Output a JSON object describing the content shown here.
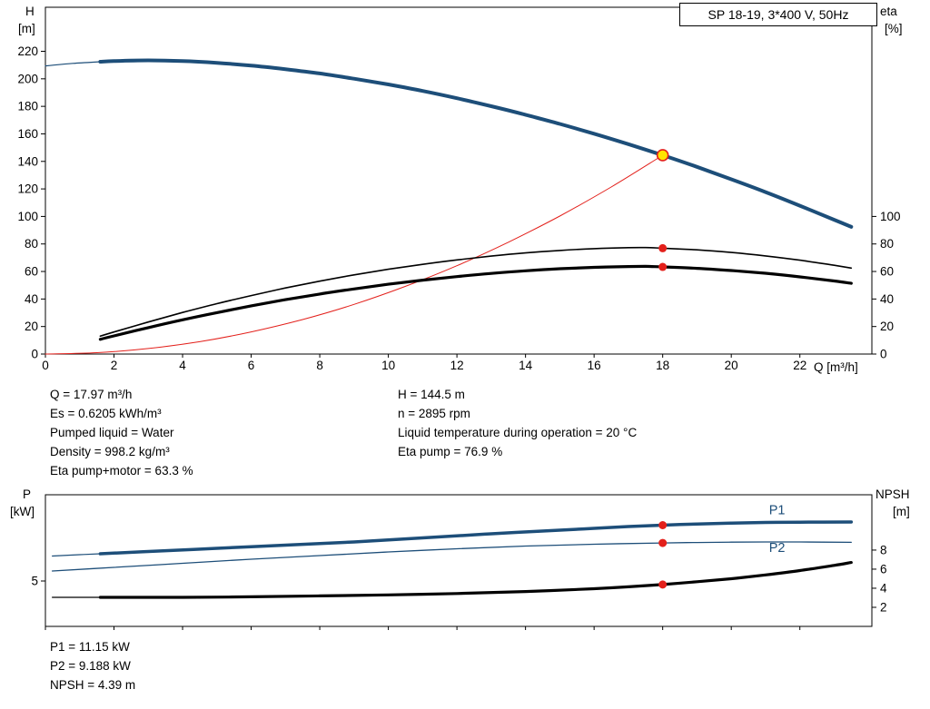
{
  "colors": {
    "curve_blue": "#1d4e79",
    "curve_red": "#e3201b",
    "curve_black": "#000000",
    "duty_fill": "#ffe400",
    "label_blue": "#1d4e79"
  },
  "info_top": {
    "left": [
      "Q = 17.97 m³/h",
      "Es = 0.6205 kWh/m³",
      "Pumped liquid = Water",
      "Density = 998.2 kg/m³",
      "Eta pump+motor = 63.3 %"
    ],
    "right": [
      "H = 144.5 m",
      "n = 2895 rpm",
      "Liquid temperature during operation = 20 °C",
      "Eta pump = 76.9 %"
    ]
  },
  "info_bottom": [
    "P1 = 11.15 kW",
    "P2 = 9.188 kW",
    "NPSH = 4.39 m"
  ],
  "chart_data": [
    {
      "type": "line",
      "title": "SP 18-19, 3*400 V, 50Hz",
      "x_axis": {
        "label": "Q [m³/h]",
        "lim": [
          0,
          24.1
        ],
        "ticks": [
          0,
          2,
          4,
          6,
          8,
          10,
          12,
          14,
          16,
          18,
          20,
          22
        ],
        "show_labels": true
      },
      "left_axis": {
        "name": "H",
        "unit": "[m]",
        "lim": [
          0,
          252
        ],
        "ticks": [
          0,
          20,
          40,
          60,
          80,
          100,
          120,
          140,
          160,
          180,
          200,
          220
        ]
      },
      "right_axis": {
        "name": "eta",
        "unit": "[%]",
        "lim": [
          0,
          252
        ],
        "ticks": [
          0,
          20,
          40,
          60,
          80,
          100
        ]
      },
      "series": [
        {
          "name": "head-curve-lead",
          "axis": "left",
          "color_key": "curve_blue",
          "width": 1.2,
          "points": [
            [
              0,
              209.4
            ],
            [
              0.8,
              211.2
            ],
            [
              1.6,
              212.4
            ]
          ]
        },
        {
          "name": "head-curve",
          "axis": "left",
          "color_key": "curve_blue",
          "width": 4,
          "points": [
            [
              1.6,
              212.4
            ],
            [
              2,
              212.9
            ],
            [
              3,
              213.4
            ],
            [
              4,
              212.9
            ],
            [
              5,
              211.6
            ],
            [
              6,
              209.6
            ],
            [
              7,
              207.0
            ],
            [
              8,
              203.9
            ],
            [
              9,
              200.1
            ],
            [
              10,
              195.9
            ],
            [
              11,
              191.2
            ],
            [
              12,
              185.9
            ],
            [
              13,
              180.1
            ],
            [
              14,
              173.9
            ],
            [
              15,
              167.2
            ],
            [
              16,
              160.1
            ],
            [
              17,
              152.5
            ],
            [
              18,
              144.5
            ],
            [
              19,
              136.0
            ],
            [
              20,
              127.0
            ],
            [
              21,
              117.7
            ],
            [
              22,
              107.8
            ],
            [
              23,
              97.6
            ],
            [
              23.5,
              92.4
            ]
          ]
        },
        {
          "name": "duty-parabola",
          "axis": "left",
          "color_key": "curve_red",
          "width": 1,
          "points": [
            [
              0,
              0
            ],
            [
              1.5,
              1.0
            ],
            [
              3,
              4.0
            ],
            [
              4.5,
              9.0
            ],
            [
              6,
              16.1
            ],
            [
              7.5,
              25.1
            ],
            [
              9,
              36.1
            ],
            [
              10.5,
              49.2
            ],
            [
              12,
              64.2
            ],
            [
              13.5,
              81.3
            ],
            [
              15,
              100.3
            ],
            [
              16.5,
              121.4
            ],
            [
              18,
              144.5
            ]
          ]
        },
        {
          "name": "eta-pump-curve",
          "axis": "right",
          "color_key": "curve_black",
          "width": 1.6,
          "points": [
            [
              1.6,
              13.0
            ],
            [
              2,
              16.0
            ],
            [
              3,
              23.3
            ],
            [
              4,
              30.2
            ],
            [
              5,
              36.6
            ],
            [
              6,
              42.5
            ],
            [
              7,
              48.0
            ],
            [
              8,
              53.0
            ],
            [
              9,
              57.5
            ],
            [
              10,
              61.6
            ],
            [
              11,
              65.2
            ],
            [
              12,
              68.4
            ],
            [
              13,
              71.2
            ],
            [
              14,
              73.5
            ],
            [
              15,
              75.3
            ],
            [
              16,
              76.6
            ],
            [
              17,
              77.3
            ],
            [
              17.5,
              77.4
            ],
            [
              18,
              76.9
            ],
            [
              19,
              75.7
            ],
            [
              20,
              73.8
            ],
            [
              21,
              71.3
            ],
            [
              22,
              68.2
            ],
            [
              23,
              64.5
            ],
            [
              23.5,
              62.5
            ]
          ]
        },
        {
          "name": "eta-pump-motor-curve",
          "axis": "right",
          "color_key": "curve_black",
          "width": 3.2,
          "points": [
            [
              1.6,
              10.7
            ],
            [
              2,
              13.2
            ],
            [
              3,
              19.2
            ],
            [
              4,
              24.9
            ],
            [
              5,
              30.1
            ],
            [
              6,
              35.0
            ],
            [
              7,
              39.5
            ],
            [
              8,
              43.6
            ],
            [
              9,
              47.3
            ],
            [
              10,
              50.7
            ],
            [
              11,
              53.7
            ],
            [
              12,
              56.3
            ],
            [
              13,
              58.6
            ],
            [
              14,
              60.5
            ],
            [
              15,
              62.0
            ],
            [
              16,
              63.0
            ],
            [
              17,
              63.6
            ],
            [
              17.5,
              63.7
            ],
            [
              18,
              63.3
            ],
            [
              19,
              62.3
            ],
            [
              20,
              60.7
            ],
            [
              21,
              58.7
            ],
            [
              22,
              56.1
            ],
            [
              23,
              53.1
            ],
            [
              23.5,
              51.4
            ]
          ]
        }
      ],
      "markers": [
        {
          "kind": "dot",
          "axis": "right",
          "x": 18,
          "y": 76.9,
          "name": "eta-pump-operating-dot"
        },
        {
          "kind": "dot",
          "axis": "right",
          "x": 18,
          "y": 63.3,
          "name": "eta-pump-motor-operating-dot"
        },
        {
          "kind": "duty",
          "axis": "left",
          "x": 18,
          "y": 144.5,
          "name": "duty-point-marker"
        }
      ],
      "annotations": []
    },
    {
      "type": "line",
      "title": "",
      "x_axis": {
        "label": "",
        "lim": [
          0,
          24.1
        ],
        "ticks": [
          0,
          2,
          4,
          6,
          8,
          10,
          12,
          14,
          16,
          18,
          20,
          22
        ],
        "show_labels": false
      },
      "left_axis": {
        "name": "P",
        "unit": "[kW]",
        "lim": [
          0,
          14.5
        ],
        "ticks": [
          5
        ]
      },
      "right_axis": {
        "name": "NPSH",
        "unit": "[m]",
        "lim": [
          0,
          13.8
        ],
        "ticks": [
          2,
          4,
          6,
          8
        ]
      },
      "series": [
        {
          "name": "p1-curve-lead",
          "axis": "left",
          "color_key": "curve_blue",
          "width": 1.2,
          "points": [
            [
              0.2,
              7.75
            ],
            [
              1,
              7.9
            ],
            [
              1.6,
              8.0
            ]
          ]
        },
        {
          "name": "p1-curve",
          "axis": "left",
          "color_key": "curve_blue",
          "width": 3.5,
          "points": [
            [
              1.6,
              8.0
            ],
            [
              3,
              8.25
            ],
            [
              5,
              8.6
            ],
            [
              7,
              8.95
            ],
            [
              9,
              9.3
            ],
            [
              11,
              9.75
            ],
            [
              13,
              10.2
            ],
            [
              15,
              10.6
            ],
            [
              16,
              10.8
            ],
            [
              17,
              11.0
            ],
            [
              18,
              11.15
            ],
            [
              19,
              11.28
            ],
            [
              20,
              11.38
            ],
            [
              21,
              11.45
            ],
            [
              22,
              11.48
            ],
            [
              23.5,
              11.5
            ]
          ]
        },
        {
          "name": "p2-curve",
          "axis": "left",
          "color_key": "curve_blue",
          "width": 1.3,
          "points": [
            [
              0.2,
              6.1
            ],
            [
              2,
              6.5
            ],
            [
              4,
              6.95
            ],
            [
              6,
              7.4
            ],
            [
              8,
              7.8
            ],
            [
              10,
              8.2
            ],
            [
              12,
              8.55
            ],
            [
              14,
              8.85
            ],
            [
              16,
              9.05
            ],
            [
              18,
              9.19
            ],
            [
              19,
              9.24
            ],
            [
              20,
              9.28
            ],
            [
              21,
              9.3
            ],
            [
              22,
              9.3
            ],
            [
              23.5,
              9.26
            ]
          ]
        },
        {
          "name": "npsh-curve-lead",
          "axis": "right",
          "color_key": "curve_black",
          "width": 1.2,
          "points": [
            [
              0.2,
              3.05
            ],
            [
              1,
              3.05
            ],
            [
              1.6,
              3.05
            ]
          ]
        },
        {
          "name": "npsh-curve",
          "axis": "right",
          "color_key": "curve_black",
          "width": 3.2,
          "points": [
            [
              1.6,
              3.05
            ],
            [
              4,
              3.05
            ],
            [
              6,
              3.1
            ],
            [
              8,
              3.2
            ],
            [
              10,
              3.3
            ],
            [
              12,
              3.45
            ],
            [
              14,
              3.65
            ],
            [
              16,
              3.95
            ],
            [
              17,
              4.15
            ],
            [
              18,
              4.39
            ],
            [
              19,
              4.68
            ],
            [
              20,
              5.0
            ],
            [
              21,
              5.4
            ],
            [
              22,
              5.85
            ],
            [
              23,
              6.4
            ],
            [
              23.5,
              6.7
            ]
          ]
        }
      ],
      "markers": [
        {
          "kind": "dot",
          "axis": "left",
          "x": 18,
          "y": 11.15,
          "name": "p1-operating-dot"
        },
        {
          "kind": "dot",
          "axis": "left",
          "x": 18,
          "y": 9.19,
          "name": "p2-operating-dot"
        },
        {
          "kind": "dot",
          "axis": "right",
          "x": 18,
          "y": 4.39,
          "name": "npsh-operating-dot"
        }
      ],
      "annotations": [
        {
          "text": "P1",
          "axis": "left",
          "x": 21.1,
          "y": 12.35,
          "color_key": "label_blue"
        },
        {
          "text": "P2",
          "axis": "left",
          "x": 21.1,
          "y": 8.2,
          "color_key": "label_blue"
        }
      ]
    }
  ]
}
